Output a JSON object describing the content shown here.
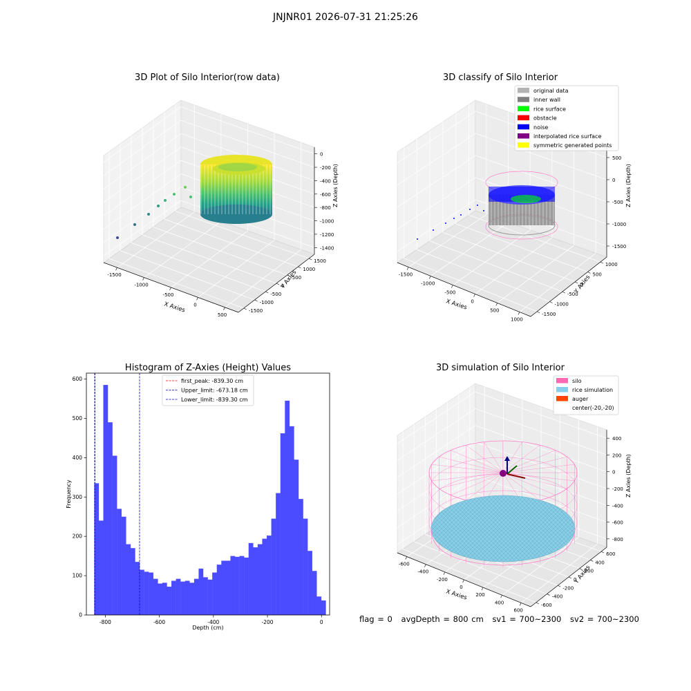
{
  "suptitle": "JNJNR01 2026-07-31 21:25:26",
  "status_line": {
    "flag": "flag = 0",
    "avg_depth": "avgDepth = 800 cm",
    "sv1": "sv1 = 700~2300",
    "sv2": "sv2 = 700~2300"
  },
  "colors": {
    "histogram_bar": "#4b4bff",
    "first_peak_line": "#ff0000",
    "limit_lines": "#0000cc",
    "silo_wire": "#ff7fc8",
    "rice_fill": "#87cde6",
    "original_data": "#b3b3b3",
    "inner_wall": "#808080",
    "rice_surface": "#00ff00",
    "obstacle": "#ff0000",
    "noise": "#0000ff",
    "interpolated_rice_surface": "#800080",
    "symmetric_generated_points": "#ffff00",
    "auger": "#ff4500"
  },
  "chart_data": [
    {
      "type": "scatter",
      "title": "3D Plot of Silo Interior(row data)",
      "xlabel": "X Axies",
      "ylabel": "Y Axies",
      "zlabel": "Z Axies (Depth)",
      "x_ticks": [
        "-1500",
        "-1000",
        "-500",
        "0",
        "500"
      ],
      "y_ticks": [
        "-1500",
        "-1000",
        "-500",
        "0",
        "500",
        "1000",
        "1500"
      ],
      "z_ticks": [
        "0",
        "-200",
        "-400",
        "-600",
        "-800",
        "-1000",
        "-1200",
        "-1400"
      ],
      "colormap": "viridis"
    },
    {
      "type": "scatter",
      "title": "3D classify of Silo Interior",
      "xlabel": "X Axies",
      "ylabel": "Y Axies",
      "zlabel": "Z Axies (Depth)",
      "x_ticks": [
        "-1500",
        "-1000",
        "-500",
        "0",
        "500",
        "1000"
      ],
      "y_ticks": [
        "-1500",
        "-1000",
        "-500",
        "0",
        "500",
        "1000"
      ],
      "z_ticks": [
        "500",
        "0",
        "-500",
        "-1000",
        "-1500"
      ],
      "legend": [
        {
          "label": "original data",
          "color": "#b3b3b3"
        },
        {
          "label": "inner wall",
          "color": "#808080"
        },
        {
          "label": "rice surface",
          "color": "#00ff00"
        },
        {
          "label": "obstacle",
          "color": "#ff0000"
        },
        {
          "label": "noise",
          "color": "#0000ff"
        },
        {
          "label": "interpolated rice surface",
          "color": "#800080"
        },
        {
          "label": "symmetric generated points",
          "color": "#ffff00"
        }
      ],
      "legend_position": "top-right"
    },
    {
      "type": "bar",
      "title": "Histogram of Z-Axies (Height) Values",
      "xlabel": "Depth (cm)",
      "ylabel": "Frequency",
      "xlim": [
        -870,
        30
      ],
      "ylim": [
        0,
        615
      ],
      "x_ticks": [
        -800,
        -600,
        -400,
        -200,
        0
      ],
      "x_tick_labels": [
        "-800",
        "-600",
        "-400",
        "-200",
        "0"
      ],
      "y_ticks": [
        0,
        100,
        200,
        300,
        400,
        500,
        600
      ],
      "y_tick_labels": [
        "0",
        "100",
        "200",
        "300",
        "400",
        "500",
        "600"
      ],
      "bin_start": -841,
      "bin_width": 16.8,
      "values": [
        335,
        240,
        585,
        490,
        405,
        270,
        250,
        180,
        170,
        135,
        115,
        110,
        108,
        92,
        80,
        82,
        72,
        87,
        92,
        85,
        87,
        82,
        92,
        118,
        96,
        90,
        108,
        128,
        138,
        138,
        150,
        148,
        150,
        146,
        183,
        172,
        180,
        194,
        202,
        245,
        310,
        462,
        545,
        480,
        395,
        295,
        245,
        163,
        112,
        47,
        37
      ],
      "vlines": [
        {
          "label": "first_peak: -839.30 cm",
          "x": -839.3,
          "color": "#ff0000"
        },
        {
          "label": "Upper_limit: -673.18 cm",
          "x": -673.18,
          "color": "#0000cc"
        },
        {
          "label": "Lower_limit: -839.30 cm",
          "x": -839.3,
          "color": "#0000cc"
        }
      ],
      "legend_position": "top-center"
    },
    {
      "type": "scatter",
      "title": "3D simulation of Silo Interior",
      "xlabel": "X Axies",
      "ylabel": "Y Axies",
      "zlabel": "Z Axies (Depth)",
      "x_ticks": [
        "-600",
        "-400",
        "-200",
        "0",
        "200",
        "400",
        "600"
      ],
      "y_ticks": [
        "-600",
        "-400",
        "-200",
        "0",
        "200",
        "400",
        "600"
      ],
      "z_ticks": [
        "400",
        "200",
        "0",
        "-200",
        "-400",
        "-600",
        "-800"
      ],
      "legend": [
        {
          "label": "silo",
          "color": "#ff69b4"
        },
        {
          "label": "rice simulation",
          "color": "#87ceeb"
        },
        {
          "label": "auger",
          "color": "#ff4500"
        },
        {
          "label": "center(-20,-20)",
          "color": ""
        }
      ],
      "legend_position": "top-right"
    }
  ]
}
